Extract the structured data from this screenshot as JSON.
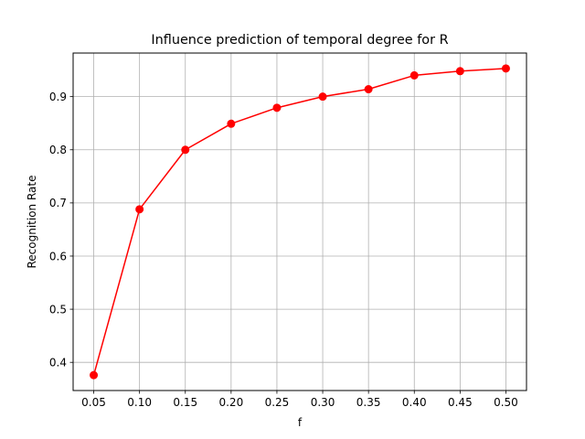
{
  "chart_data": {
    "type": "line",
    "title": "Influence prediction of temporal degree for R",
    "xlabel": "f",
    "ylabel": "Recognition Rate",
    "x": [
      0.05,
      0.1,
      0.15,
      0.2,
      0.25,
      0.3,
      0.35,
      0.4,
      0.45,
      0.5
    ],
    "series": [
      {
        "values": [
          0.376,
          0.688,
          0.8,
          0.849,
          0.879,
          0.9,
          0.914,
          0.94,
          0.948,
          0.953
        ],
        "color": "#ff0000",
        "marker": "circle"
      }
    ],
    "xticks": [
      "0.05",
      "0.10",
      "0.15",
      "0.20",
      "0.25",
      "0.30",
      "0.35",
      "0.40",
      "0.45",
      "0.50"
    ],
    "yticks": [
      "0.4",
      "0.5",
      "0.6",
      "0.7",
      "0.8",
      "0.9"
    ],
    "xlim": [
      0.0275,
      0.5225
    ],
    "ylim": [
      0.347,
      0.982
    ],
    "grid": true,
    "grid_color": "#b0b0b0",
    "axis_color": "#000000"
  }
}
